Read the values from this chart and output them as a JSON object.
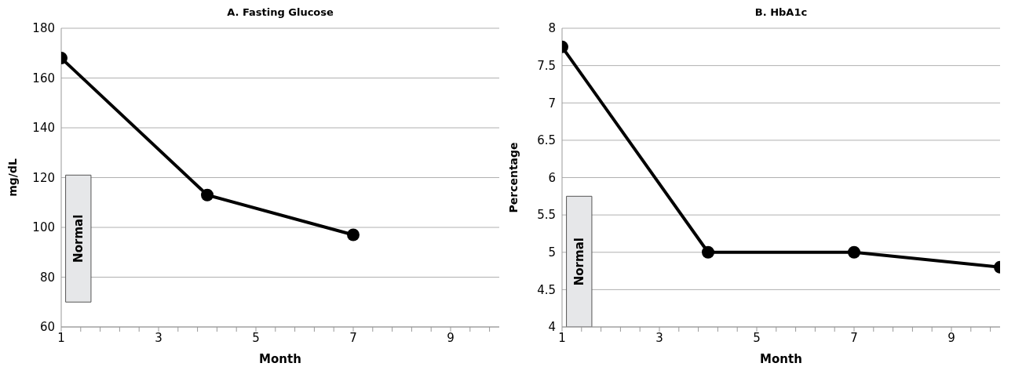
{
  "chart_data": [
    {
      "type": "line",
      "title": "A. Fasting Glucose",
      "xlabel": "Month",
      "ylabel": "mg/dL",
      "x": [
        1,
        4,
        7
      ],
      "series": [
        {
          "color": "#000000",
          "values": [
            168,
            113,
            97
          ]
        }
      ],
      "xlim": [
        1,
        10
      ],
      "xticks": [
        1,
        {
          "value": 1.4,
          "label": null
        },
        {
          "value": 1.8,
          "label": null
        },
        {
          "value": 2.2,
          "label": null
        },
        {
          "value": 2.6,
          "label": null
        },
        3,
        {
          "value": 3.4,
          "label": null
        },
        {
          "value": 3.8,
          "label": null
        },
        {
          "value": 4.2,
          "label": null
        },
        {
          "value": 4.6,
          "label": null
        },
        5,
        {
          "value": 5.4,
          "label": null
        },
        {
          "value": 5.8,
          "label": null
        },
        {
          "value": 6.2,
          "label": null
        },
        {
          "value": 6.6,
          "label": null
        },
        7,
        {
          "value": 7.4,
          "label": null
        },
        {
          "value": 7.8,
          "label": null
        },
        {
          "value": 8.2,
          "label": null
        },
        {
          "value": 8.6,
          "label": null
        },
        9,
        {
          "value": 9.4,
          "label": null
        },
        {
          "value": 9.8,
          "label": null
        }
      ],
      "ylim": [
        60,
        180
      ],
      "yticks": [
        60,
        80,
        100,
        120,
        140,
        160,
        180
      ],
      "bands": [
        {
          "axis": "y",
          "from": 70,
          "to": 121,
          "label": "Normal",
          "color": "#e6e7e9"
        }
      ],
      "grid": "y",
      "marker": "circle",
      "line_style": "solid",
      "legend": false
    },
    {
      "type": "line",
      "title": "B. HbA1c",
      "xlabel": "Month",
      "ylabel": "Percentage",
      "x": [
        1,
        4,
        7,
        10
      ],
      "series": [
        {
          "color": "#000000",
          "values": [
            7.75,
            5,
            5,
            4.8
          ]
        }
      ],
      "xlim": [
        1,
        10
      ],
      "xticks": [
        1,
        {
          "value": 1.4,
          "label": null
        },
        {
          "value": 1.8,
          "label": null
        },
        {
          "value": 2.2,
          "label": null
        },
        {
          "value": 2.6,
          "label": null
        },
        3,
        {
          "value": 3.4,
          "label": null
        },
        {
          "value": 3.8,
          "label": null
        },
        {
          "value": 4.2,
          "label": null
        },
        {
          "value": 4.6,
          "label": null
        },
        5,
        {
          "value": 5.4,
          "label": null
        },
        {
          "value": 5.8,
          "label": null
        },
        {
          "value": 6.2,
          "label": null
        },
        {
          "value": 6.6,
          "label": null
        },
        7,
        {
          "value": 7.4,
          "label": null
        },
        {
          "value": 7.8,
          "label": null
        },
        {
          "value": 8.2,
          "label": null
        },
        {
          "value": 8.6,
          "label": null
        },
        9,
        {
          "value": 9.4,
          "label": null
        },
        {
          "value": 9.8,
          "label": null
        }
      ],
      "ylim": [
        4,
        8
      ],
      "yticks": [
        4,
        4.5,
        5,
        5.5,
        6,
        6.5,
        7,
        7.5,
        8
      ],
      "bands": [
        {
          "axis": "y",
          "from": 4,
          "to": 5.75,
          "label": "Normal",
          "color": "#e6e7e9"
        }
      ],
      "grid": "y",
      "marker": "circle",
      "line_style": "solid",
      "legend": false
    }
  ]
}
